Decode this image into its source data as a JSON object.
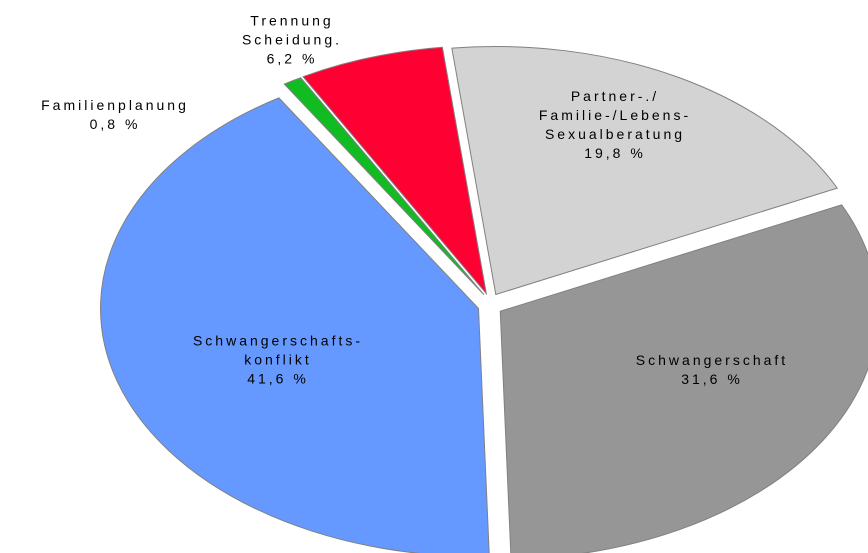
{
  "chart_data": {
    "type": "pie",
    "categories": [
      "Trennung\nScheidung.",
      "Partner-./\nFamilie-/Lebens-\nSexualberatung",
      "Schwangerschaft",
      "Schwangerschafts-\nkonflikt",
      "Familienplanung"
    ],
    "values": [
      6.2,
      19.8,
      31.6,
      41.6,
      0.8
    ],
    "value_labels": [
      "6,2 %",
      "19,8 %",
      "31,6 %",
      "41,6 %",
      "0,8 %"
    ],
    "colors": [
      "#ff0033",
      "#d3d3d3",
      "#969696",
      "#6699ff",
      "#11bb22"
    ]
  }
}
